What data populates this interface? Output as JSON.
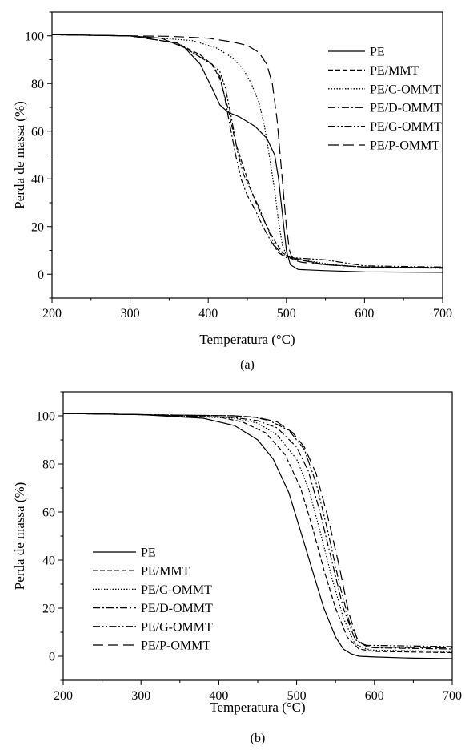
{
  "chart_data": [
    {
      "type": "line",
      "panel_label": "(a)",
      "xlabel": "Temperatura (°C)",
      "ylabel": "Perda de massa (%)",
      "xlim": [
        200,
        700
      ],
      "ylim": [
        -10,
        110
      ],
      "xticks": [
        200,
        300,
        400,
        500,
        600,
        700
      ],
      "yticks": [
        0,
        20,
        40,
        60,
        80,
        100
      ],
      "legend_position": "top-right",
      "grid": false,
      "series": [
        {
          "name": "PE",
          "dash": "solid",
          "points": [
            [
              200,
              100.5
            ],
            [
              300,
              100
            ],
            [
              340,
              99
            ],
            [
              370,
              95
            ],
            [
              390,
              88
            ],
            [
              405,
              78
            ],
            [
              415,
              71
            ],
            [
              425,
              68
            ],
            [
              440,
              66
            ],
            [
              460,
              62
            ],
            [
              475,
              57
            ],
            [
              485,
              50
            ],
            [
              490,
              40
            ],
            [
              495,
              25
            ],
            [
              500,
              10
            ],
            [
              505,
              4
            ],
            [
              515,
              2
            ],
            [
              550,
              1.5
            ],
            [
              600,
              1
            ],
            [
              700,
              0.8
            ]
          ]
        },
        {
          "name": "PE/MMT",
          "dash": "dash",
          "points": [
            [
              200,
              100.5
            ],
            [
              300,
              100
            ],
            [
              360,
              97
            ],
            [
              390,
              92
            ],
            [
              405,
              88
            ],
            [
              415,
              82
            ],
            [
              425,
              70
            ],
            [
              435,
              55
            ],
            [
              445,
              45
            ],
            [
              455,
              35
            ],
            [
              465,
              27
            ],
            [
              475,
              20
            ],
            [
              485,
              14
            ],
            [
              495,
              9
            ],
            [
              505,
              7
            ],
            [
              550,
              4
            ],
            [
              600,
              3
            ],
            [
              700,
              2.8
            ]
          ]
        },
        {
          "name": "PE/C-OMMT",
          "dash": "dot",
          "points": [
            [
              200,
              100.5
            ],
            [
              300,
              100
            ],
            [
              380,
              98
            ],
            [
              410,
              95
            ],
            [
              430,
              91
            ],
            [
              445,
              86
            ],
            [
              455,
              80
            ],
            [
              465,
              72
            ],
            [
              472,
              62
            ],
            [
              478,
              50
            ],
            [
              485,
              35
            ],
            [
              490,
              22
            ],
            [
              495,
              12
            ],
            [
              500,
              8
            ],
            [
              520,
              6
            ],
            [
              560,
              4
            ],
            [
              600,
              3
            ],
            [
              700,
              2.8
            ]
          ]
        },
        {
          "name": "PE/D-OMMT",
          "dash": "dashdot",
          "points": [
            [
              200,
              100.5
            ],
            [
              300,
              100
            ],
            [
              360,
              97
            ],
            [
              380,
              93
            ],
            [
              395,
              90
            ],
            [
              405,
              88
            ],
            [
              415,
              83
            ],
            [
              420,
              76
            ],
            [
              428,
              62
            ],
            [
              435,
              50
            ],
            [
              442,
              40
            ],
            [
              450,
              33
            ],
            [
              460,
              27
            ],
            [
              470,
              20
            ],
            [
              480,
              14
            ],
            [
              490,
              9
            ],
            [
              500,
              7
            ],
            [
              550,
              4
            ],
            [
              600,
              3
            ],
            [
              700,
              2.5
            ]
          ]
        },
        {
          "name": "PE/G-OMMT",
          "dash": "dashdotdot",
          "points": [
            [
              200,
              100.5
            ],
            [
              300,
              100
            ],
            [
              360,
              97
            ],
            [
              380,
              93
            ],
            [
              395,
              90
            ],
            [
              405,
              88
            ],
            [
              415,
              85
            ],
            [
              422,
              78
            ],
            [
              430,
              65
            ],
            [
              437,
              52
            ],
            [
              445,
              42
            ],
            [
              455,
              35
            ],
            [
              465,
              28
            ],
            [
              475,
              20
            ],
            [
              485,
              12
            ],
            [
              495,
              8
            ],
            [
              505,
              7
            ],
            [
              550,
              6
            ],
            [
              600,
              3.5
            ],
            [
              700,
              3
            ]
          ]
        },
        {
          "name": "PE/P-OMMT",
          "dash": "longdash",
          "points": [
            [
              200,
              100.5
            ],
            [
              300,
              100
            ],
            [
              350,
              99.8
            ],
            [
              400,
              99
            ],
            [
              430,
              97.5
            ],
            [
              450,
              96
            ],
            [
              465,
              93
            ],
            [
              475,
              88
            ],
            [
              482,
              80
            ],
            [
              488,
              65
            ],
            [
              492,
              50
            ],
            [
              496,
              35
            ],
            [
              500,
              20
            ],
            [
              504,
              10
            ],
            [
              508,
              6
            ],
            [
              520,
              5
            ],
            [
              550,
              4
            ],
            [
              600,
              3
            ],
            [
              700,
              2.8
            ]
          ]
        }
      ]
    },
    {
      "type": "line",
      "panel_label": "(b)",
      "xlabel": "Temperatura (°C)",
      "ylabel": "Perda de massa (%)",
      "xlim": [
        200,
        700
      ],
      "ylim": [
        -10,
        110
      ],
      "xticks": [
        200,
        300,
        400,
        500,
        600,
        700
      ],
      "yticks": [
        0,
        20,
        40,
        60,
        80,
        100
      ],
      "legend_position": "bottom-left",
      "grid": false,
      "series": [
        {
          "name": "PE",
          "dash": "solid",
          "points": [
            [
              200,
              101
            ],
            [
              300,
              100.5
            ],
            [
              380,
              99
            ],
            [
              420,
              96
            ],
            [
              450,
              90
            ],
            [
              470,
              82
            ],
            [
              490,
              68
            ],
            [
              505,
              52
            ],
            [
              520,
              36
            ],
            [
              535,
              20
            ],
            [
              550,
              8
            ],
            [
              560,
              3
            ],
            [
              570,
              1
            ],
            [
              580,
              0
            ],
            [
              600,
              -0.3
            ],
            [
              650,
              -0.8
            ],
            [
              700,
              -1
            ]
          ]
        },
        {
          "name": "PE/MMT",
          "dash": "dash",
          "points": [
            [
              200,
              101
            ],
            [
              300,
              100.5
            ],
            [
              400,
              99.5
            ],
            [
              430,
              97.5
            ],
            [
              460,
              93
            ],
            [
              485,
              84
            ],
            [
              505,
              70
            ],
            [
              520,
              54
            ],
            [
              535,
              36
            ],
            [
              550,
              20
            ],
            [
              565,
              8
            ],
            [
              580,
              3
            ],
            [
              600,
              2
            ],
            [
              700,
              1.5
            ]
          ]
        },
        {
          "name": "PE/C-OMMT",
          "dash": "dot",
          "points": [
            [
              200,
              101
            ],
            [
              300,
              100.5
            ],
            [
              420,
              99
            ],
            [
              450,
              97
            ],
            [
              475,
              92
            ],
            [
              500,
              82
            ],
            [
              515,
              70
            ],
            [
              530,
              52
            ],
            [
              545,
              33
            ],
            [
              560,
              16
            ],
            [
              575,
              5
            ],
            [
              590,
              3
            ],
            [
              600,
              2.5
            ],
            [
              700,
              2
            ]
          ]
        },
        {
          "name": "PE/D-OMMT",
          "dash": "dashdot",
          "points": [
            [
              200,
              101
            ],
            [
              300,
              100.5
            ],
            [
              420,
              99.3
            ],
            [
              450,
              98
            ],
            [
              475,
              95
            ],
            [
              500,
              87
            ],
            [
              515,
              77
            ],
            [
              530,
              60
            ],
            [
              545,
              40
            ],
            [
              560,
              20
            ],
            [
              575,
              7
            ],
            [
              590,
              4
            ],
            [
              600,
              3.5
            ],
            [
              700,
              3
            ]
          ]
        },
        {
          "name": "PE/G-OMMT",
          "dash": "dashdotdot",
          "points": [
            [
              200,
              101
            ],
            [
              300,
              100.5
            ],
            [
              420,
              100
            ],
            [
              445,
              99.5
            ],
            [
              465,
              98
            ],
            [
              490,
              94
            ],
            [
              510,
              86
            ],
            [
              525,
              72
            ],
            [
              540,
              52
            ],
            [
              555,
              30
            ],
            [
              568,
              14
            ],
            [
              580,
              6
            ],
            [
              590,
              4.5
            ],
            [
              600,
              4.5
            ],
            [
              700,
              4
            ]
          ]
        },
        {
          "name": "PE/P-OMMT",
          "dash": "longdash",
          "points": [
            [
              200,
              101
            ],
            [
              300,
              100.5
            ],
            [
              420,
              100
            ],
            [
              450,
              99.3
            ],
            [
              475,
              97.5
            ],
            [
              495,
              93
            ],
            [
              510,
              87
            ],
            [
              525,
              76
            ],
            [
              540,
              58
            ],
            [
              555,
              37
            ],
            [
              567,
              18
            ],
            [
              578,
              7
            ],
            [
              590,
              4
            ],
            [
              600,
              3.8
            ],
            [
              700,
              3.5
            ]
          ]
        }
      ]
    }
  ]
}
